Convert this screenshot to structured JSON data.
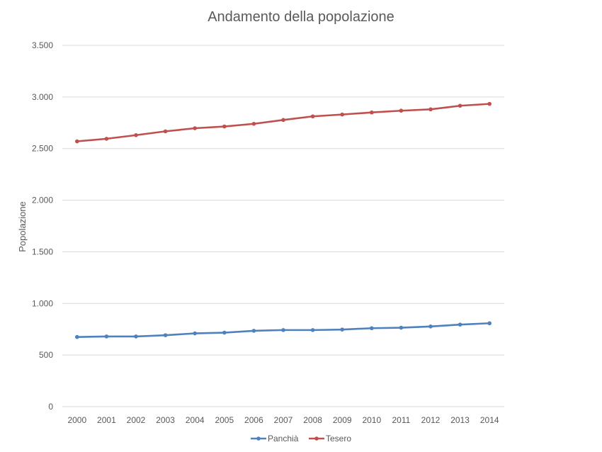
{
  "chart_data": {
    "type": "line",
    "title": "Andamento della popolazione",
    "xlabel": "",
    "ylabel": "Popolazione",
    "categories": [
      "2000",
      "2001",
      "2002",
      "2003",
      "2004",
      "2005",
      "2006",
      "2007",
      "2008",
      "2009",
      "2010",
      "2011",
      "2012",
      "2013",
      "2014"
    ],
    "ylim": [
      0,
      3500
    ],
    "yticks": [
      0,
      500,
      1000,
      1500,
      2000,
      2500,
      3000,
      3500
    ],
    "ytick_labels": [
      "0",
      "500",
      "1.000",
      "1.500",
      "2.000",
      "2.500",
      "3.000",
      "3.500"
    ],
    "grid": true,
    "legend": "bottom",
    "series": [
      {
        "name": "Panchià",
        "color": "#4f81bd",
        "values": [
          675,
          680,
          680,
          692,
          710,
          717,
          735,
          742,
          742,
          747,
          760,
          765,
          777,
          795,
          808
        ]
      },
      {
        "name": "Tesero",
        "color": "#c0504d",
        "values": [
          2570,
          2595,
          2630,
          2667,
          2697,
          2714,
          2740,
          2777,
          2812,
          2830,
          2850,
          2867,
          2880,
          2915,
          2933
        ]
      }
    ]
  }
}
